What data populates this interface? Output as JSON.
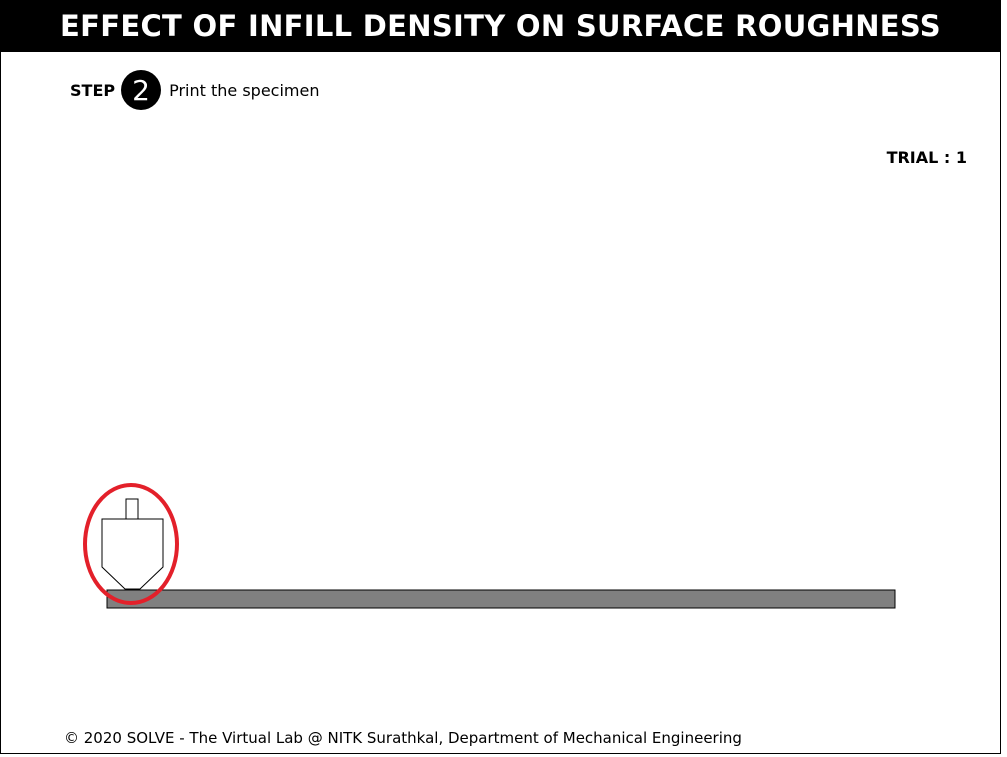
{
  "title": "EFFECT OF INFILL DENSITY ON SURFACE ROUGHNESS",
  "step": {
    "label": "STEP",
    "number": "2",
    "text": "Print the specimen"
  },
  "trial": "TRIAL : 1",
  "footer": "© 2020 SOLVE - The Virtual Lab @ NITK Surathkal, Department of Mechanical Engineering",
  "colors": {
    "title_bg": "#000000",
    "bed": "#808080",
    "highlight_ring": "#e3202a"
  },
  "icons": {
    "nozzle": "print-nozzle-icon"
  }
}
